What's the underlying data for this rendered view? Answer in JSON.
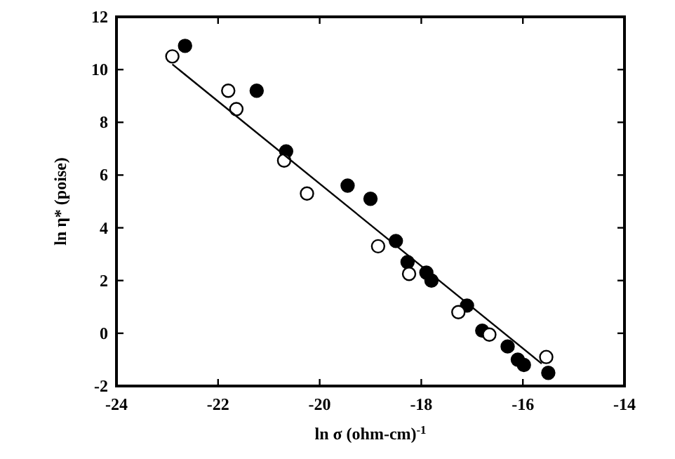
{
  "chart_data": {
    "type": "scatter",
    "xlabel": "ln σ (ohm-cm)$^{-1}$",
    "ylabel": "ln η* (poise)",
    "xlim": [
      -24,
      -14
    ],
    "ylim": [
      -2,
      12
    ],
    "xticks": [
      -24,
      -22,
      -20,
      -18,
      -16,
      -14
    ],
    "yticks": [
      -2,
      0,
      2,
      4,
      6,
      8,
      10,
      12
    ],
    "grid": false,
    "series": [
      {
        "color": "#000000",
        "marker": "circle",
        "x": [
          -22.65,
          -21.24,
          -20.66,
          -19.45,
          -19.0,
          -18.5,
          -18.27,
          -17.9,
          -17.8,
          -17.1,
          -16.8,
          -16.3,
          -16.1,
          -15.98,
          -15.5
        ],
        "values": [
          10.9,
          9.2,
          6.9,
          5.6,
          5.1,
          3.5,
          2.7,
          2.3,
          2.0,
          1.05,
          0.1,
          -0.5,
          -1.0,
          -1.2,
          -1.5
        ]
      },
      {
        "color": "#ffffff",
        "marker": "circle",
        "x": [
          -22.9,
          -21.8,
          -21.64,
          -20.7,
          -20.25,
          -18.85,
          -18.24,
          -17.27,
          -16.66,
          -15.54
        ],
        "values": [
          10.5,
          9.2,
          8.5,
          6.55,
          5.3,
          3.3,
          2.25,
          0.8,
          -0.05,
          -0.9
        ]
      },
      {
        "type": "line",
        "color": "#000000",
        "marker": "none",
        "line_style": "solid",
        "x": [
          -22.9,
          -15.63
        ],
        "values": [
          10.2,
          -1.15
        ]
      }
    ]
  }
}
